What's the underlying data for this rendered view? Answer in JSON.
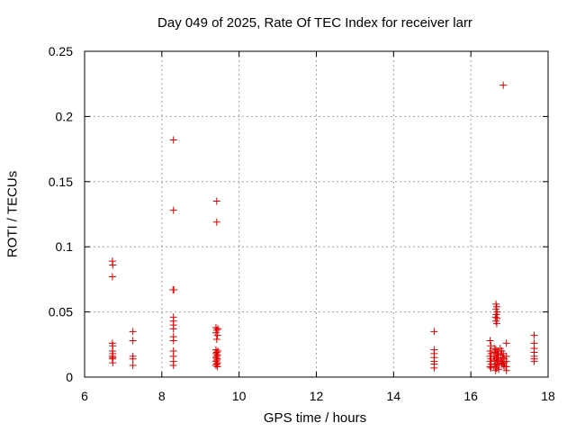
{
  "chart_data": {
    "type": "scatter",
    "title": "Day 049 of 2025, Rate Of TEC Index for receiver larr",
    "xlabel": "GPS time / hours",
    "ylabel": "ROTI / TECUs",
    "xlim": [
      6,
      18
    ],
    "ylim": [
      0,
      0.25
    ],
    "xticks": [
      "6",
      "8",
      "10",
      "12",
      "14",
      "16",
      "18"
    ],
    "yticks": [
      "0",
      "0.05",
      "0.1",
      "0.15",
      "0.2",
      "0.25"
    ],
    "grid": true,
    "marker": "+",
    "marker_color": "#e00000",
    "points": [
      [
        6.72,
        0.089
      ],
      [
        6.73,
        0.086
      ],
      [
        6.72,
        0.077
      ],
      [
        6.72,
        0.026
      ],
      [
        6.73,
        0.024
      ],
      [
        6.72,
        0.02
      ],
      [
        6.73,
        0.018
      ],
      [
        6.72,
        0.016
      ],
      [
        6.73,
        0.015
      ],
      [
        6.72,
        0.014
      ],
      [
        6.73,
        0.011
      ],
      [
        7.25,
        0.035
      ],
      [
        7.25,
        0.028
      ],
      [
        7.25,
        0.016
      ],
      [
        7.25,
        0.014
      ],
      [
        7.25,
        0.009
      ],
      [
        8.3,
        0.182
      ],
      [
        8.3,
        0.128
      ],
      [
        8.29,
        0.067
      ],
      [
        8.31,
        0.067
      ],
      [
        8.3,
        0.046
      ],
      [
        8.3,
        0.043
      ],
      [
        8.3,
        0.04
      ],
      [
        8.3,
        0.037
      ],
      [
        8.3,
        0.031
      ],
      [
        8.3,
        0.028
      ],
      [
        8.3,
        0.02
      ],
      [
        8.3,
        0.016
      ],
      [
        8.3,
        0.012
      ],
      [
        8.3,
        0.009
      ],
      [
        9.42,
        0.135
      ],
      [
        9.42,
        0.119
      ],
      [
        9.4,
        0.038
      ],
      [
        9.45,
        0.037
      ],
      [
        9.42,
        0.036
      ],
      [
        9.4,
        0.034
      ],
      [
        9.44,
        0.032
      ],
      [
        9.42,
        0.029
      ],
      [
        9.4,
        0.021
      ],
      [
        9.45,
        0.02
      ],
      [
        9.42,
        0.019
      ],
      [
        9.4,
        0.018
      ],
      [
        9.44,
        0.017
      ],
      [
        9.42,
        0.016
      ],
      [
        9.4,
        0.015
      ],
      [
        9.44,
        0.014
      ],
      [
        9.42,
        0.013
      ],
      [
        9.4,
        0.012
      ],
      [
        9.44,
        0.011
      ],
      [
        9.42,
        0.01
      ],
      [
        9.4,
        0.009
      ],
      [
        9.44,
        0.008
      ],
      [
        15.05,
        0.035
      ],
      [
        15.05,
        0.021
      ],
      [
        15.05,
        0.018
      ],
      [
        15.05,
        0.015
      ],
      [
        15.05,
        0.012
      ],
      [
        15.05,
        0.01
      ],
      [
        15.05,
        0.007
      ],
      [
        16.5,
        0.028
      ],
      [
        16.52,
        0.024
      ],
      [
        16.5,
        0.02
      ],
      [
        16.53,
        0.018
      ],
      [
        16.5,
        0.016
      ],
      [
        16.52,
        0.014
      ],
      [
        16.5,
        0.012
      ],
      [
        16.53,
        0.01
      ],
      [
        16.5,
        0.008
      ],
      [
        16.52,
        0.007
      ],
      [
        16.65,
        0.056
      ],
      [
        16.67,
        0.054
      ],
      [
        16.65,
        0.052
      ],
      [
        16.68,
        0.05
      ],
      [
        16.66,
        0.048
      ],
      [
        16.64,
        0.046
      ],
      [
        16.68,
        0.045
      ],
      [
        16.65,
        0.043
      ],
      [
        16.67,
        0.041
      ],
      [
        16.62,
        0.022
      ],
      [
        16.65,
        0.021
      ],
      [
        16.7,
        0.02
      ],
      [
        16.63,
        0.019
      ],
      [
        16.68,
        0.018
      ],
      [
        16.72,
        0.017
      ],
      [
        16.6,
        0.016
      ],
      [
        16.66,
        0.015
      ],
      [
        16.7,
        0.014
      ],
      [
        16.62,
        0.013
      ],
      [
        16.68,
        0.012
      ],
      [
        16.74,
        0.011
      ],
      [
        16.64,
        0.01
      ],
      [
        16.7,
        0.009
      ],
      [
        16.6,
        0.008
      ],
      [
        16.66,
        0.007
      ],
      [
        16.72,
        0.006
      ],
      [
        16.64,
        0.005
      ],
      [
        16.76,
        0.022
      ],
      [
        16.8,
        0.02
      ],
      [
        16.84,
        0.018
      ],
      [
        16.78,
        0.017
      ],
      [
        16.82,
        0.015
      ],
      [
        16.86,
        0.014
      ],
      [
        16.78,
        0.013
      ],
      [
        16.82,
        0.012
      ],
      [
        16.86,
        0.011
      ],
      [
        16.8,
        0.01
      ],
      [
        16.84,
        0.009
      ],
      [
        16.88,
        0.008
      ],
      [
        16.84,
        0.224
      ],
      [
        16.92,
        0.026
      ],
      [
        16.92,
        0.016
      ],
      [
        16.92,
        0.012
      ],
      [
        16.92,
        0.008
      ],
      [
        16.92,
        0.005
      ],
      [
        17.64,
        0.032
      ],
      [
        17.64,
        0.026
      ],
      [
        17.64,
        0.022
      ],
      [
        17.64,
        0.019
      ],
      [
        17.64,
        0.016
      ],
      [
        17.64,
        0.014
      ],
      [
        17.64,
        0.012
      ]
    ]
  }
}
